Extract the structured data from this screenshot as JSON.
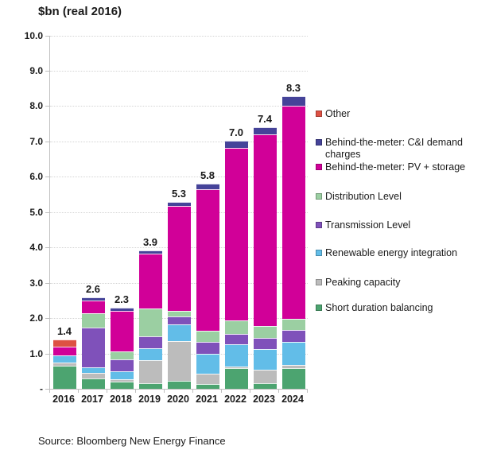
{
  "title": "$bn (real 2016)",
  "source": "Source: Bloomberg New Energy Finance",
  "y_axis": {
    "tick_labels": [
      "10.0",
      "9.0",
      "8.0",
      "7.0",
      "6.0",
      "5.0",
      "4.0",
      "3.0",
      "2.0",
      "1.0",
      "-"
    ]
  },
  "legend": {
    "items": [
      {
        "label": "Other",
        "color": "#dd5144"
      },
      {
        "label": "Behind-the-meter: C&I demand charges",
        "color": "#454399"
      },
      {
        "label": "Behind-the-meter: PV + storage",
        "color": "#d10098"
      },
      {
        "label": "Distribution Level",
        "color": "#9bcfa2"
      },
      {
        "label": "Transmission Level",
        "color": "#7f51ba"
      },
      {
        "label": "Renewable energy integration",
        "color": "#62bde8"
      },
      {
        "label": "Peaking capacity",
        "color": "#bcbcbc"
      },
      {
        "label": "Short duration balancing",
        "color": "#4ca470"
      }
    ]
  },
  "chart_data": {
    "type": "bar",
    "stacked": true,
    "title": "$bn (real 2016)",
    "ylabel": "$bn (real 2016)",
    "xlabel": "",
    "ylim": [
      0,
      10
    ],
    "ytick_step": 1.0,
    "grid": true,
    "legend_position": "right",
    "categories": [
      "2016",
      "2017",
      "2018",
      "2019",
      "2020",
      "2021",
      "2022",
      "2023",
      "2024"
    ],
    "totals_labels": [
      "1.4",
      "2.6",
      "2.3",
      "3.9",
      "5.3",
      "5.8",
      "7.0",
      "7.4",
      "8.3"
    ],
    "totals": [
      1.4,
      2.6,
      2.3,
      3.9,
      5.3,
      5.8,
      7.0,
      7.4,
      8.3
    ],
    "series": [
      {
        "name": "Short duration balancing",
        "color": "#4ca470",
        "values": [
          0.65,
          0.3,
          0.2,
          0.15,
          0.22,
          0.13,
          0.58,
          0.16,
          0.59
        ]
      },
      {
        "name": "Peaking capacity",
        "color": "#bcbcbc",
        "values": [
          0.1,
          0.15,
          0.07,
          0.65,
          1.13,
          0.29,
          0.05,
          0.37,
          0.08
        ]
      },
      {
        "name": "Renewable energy integration",
        "color": "#62bde8",
        "values": [
          0.2,
          0.15,
          0.22,
          0.34,
          0.48,
          0.56,
          0.63,
          0.6,
          0.66
        ]
      },
      {
        "name": "Transmission Level",
        "color": "#7f51ba",
        "values": [
          0.0,
          1.13,
          0.35,
          0.34,
          0.21,
          0.34,
          0.3,
          0.3,
          0.34
        ]
      },
      {
        "name": "Distribution Level",
        "color": "#9bcfa2",
        "values": [
          0.0,
          0.4,
          0.22,
          0.8,
          0.16,
          0.33,
          0.37,
          0.34,
          0.3
        ]
      },
      {
        "name": "Behind-the-meter: PV + storage",
        "color": "#d10098",
        "values": [
          0.25,
          0.37,
          1.15,
          1.55,
          2.98,
          4.0,
          4.88,
          5.43,
          6.04
        ]
      },
      {
        "name": "Behind-the-meter: C&I demand charges",
        "color": "#454399",
        "values": [
          0.0,
          0.09,
          0.08,
          0.08,
          0.11,
          0.15,
          0.2,
          0.2,
          0.27
        ]
      },
      {
        "name": "Other",
        "color": "#dd5144",
        "values": [
          0.2,
          0.0,
          0.0,
          0.0,
          0.0,
          0.0,
          0.0,
          0.0,
          0.0
        ]
      }
    ]
  }
}
